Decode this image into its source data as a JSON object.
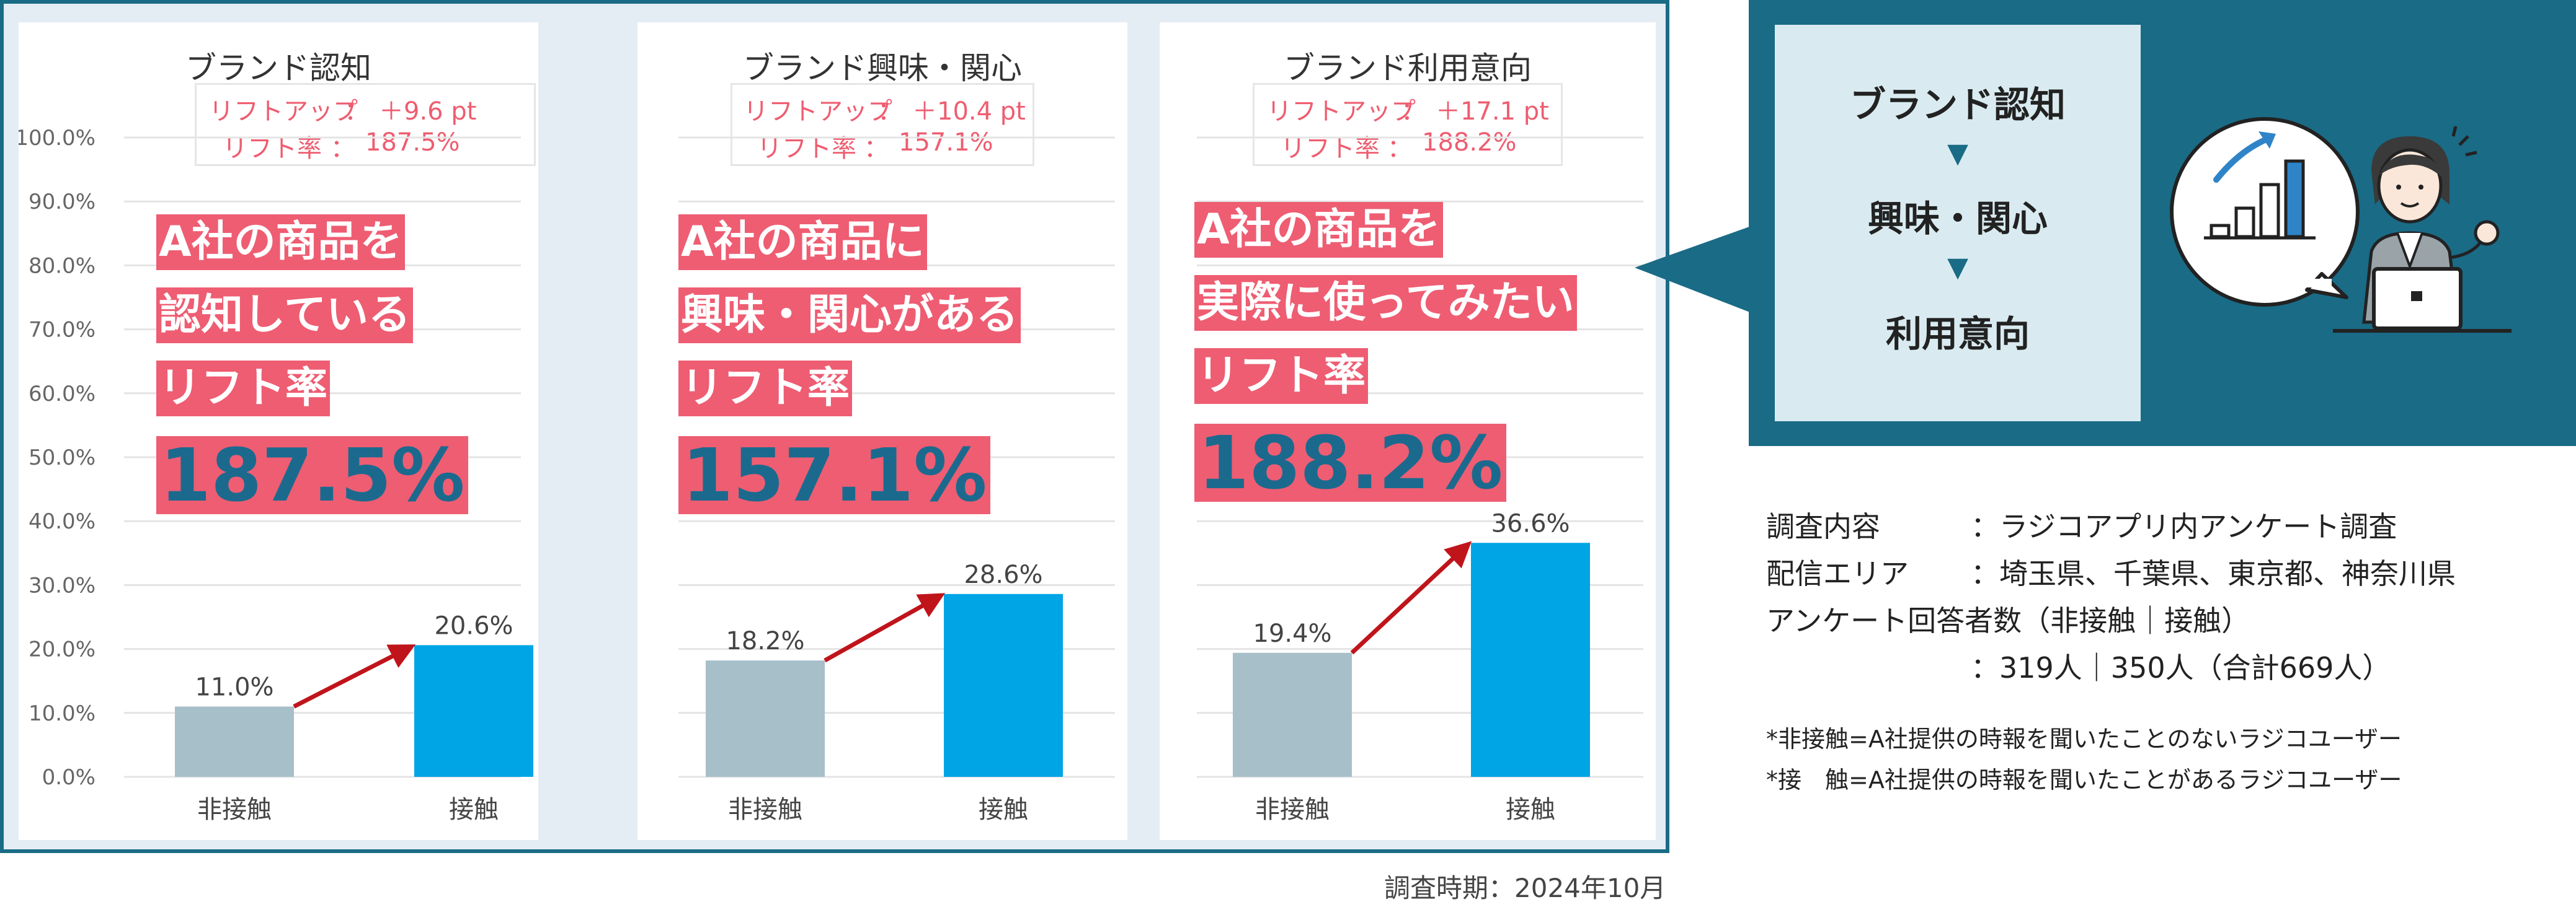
{
  "panels": [
    {
      "title": "ブランド認知",
      "lift_up_label": "リフトアップ",
      "lift_up_value": "＋9.6 pt",
      "lift_rate_label": "リフト率",
      "lift_rate_value": "187.5%",
      "headline": [
        "A社の商品を",
        "認知している",
        "リフト率"
      ],
      "big_pct": "187.5%"
    },
    {
      "title": "ブランド興味・関心",
      "lift_up_label": "リフトアップ",
      "lift_up_value": "＋10.4 pt",
      "lift_rate_label": "リフト率",
      "lift_rate_value": "157.1%",
      "headline": [
        "A社の商品に",
        "興味・関心がある",
        "リフト率"
      ],
      "big_pct": "157.1%"
    },
    {
      "title": "ブランド利用意向",
      "lift_up_label": "リフトアップ",
      "lift_up_value": "＋17.1 pt",
      "lift_rate_label": "リフト率",
      "lift_rate_value": "188.2%",
      "headline": [
        "A社の商品を",
        "実際に使ってみたい",
        "リフト率"
      ],
      "big_pct": "188.2%"
    }
  ],
  "colon": "：",
  "chart_data": [
    {
      "type": "bar",
      "title": "ブランド認知",
      "categories": [
        "非接触",
        "接触"
      ],
      "values": [
        11.0,
        20.6
      ],
      "value_labels": [
        "11.0%",
        "20.6%"
      ],
      "ylim": [
        0,
        100
      ],
      "yticks": [
        "0.0%",
        "10.0%",
        "20.0%",
        "30.0%",
        "40.0%",
        "50.0%",
        "60.0%",
        "70.0%",
        "80.0%",
        "90.0%",
        "100.0%"
      ],
      "grid": true,
      "bar_colors": [
        "#a7bfc9",
        "#00a5e6"
      ]
    },
    {
      "type": "bar",
      "title": "ブランド興味・関心",
      "categories": [
        "非接触",
        "接触"
      ],
      "values": [
        18.2,
        28.6
      ],
      "value_labels": [
        "18.2%",
        "28.6%"
      ],
      "ylim": [
        0,
        100
      ],
      "grid": true,
      "bar_colors": [
        "#a7bfc9",
        "#00a5e6"
      ]
    },
    {
      "type": "bar",
      "title": "ブランド利用意向",
      "categories": [
        "非接触",
        "接触"
      ],
      "values": [
        19.4,
        36.6
      ],
      "value_labels": [
        "19.4%",
        "36.6%"
      ],
      "ylim": [
        0,
        100
      ],
      "grid": true,
      "bar_colors": [
        "#a7bfc9",
        "#00a5e6"
      ]
    }
  ],
  "funnel": {
    "steps": [
      "ブランド認知",
      "興味・関心",
      "利用意向"
    ],
    "arrow": "▼"
  },
  "survey": {
    "rows": [
      {
        "key": "調査内容",
        "value": "：ラジコアプリ内アンケート調査"
      },
      {
        "key": "配信エリア",
        "value": "：埼玉県、千葉県、東京都、神奈川県"
      }
    ],
    "respondents_label": "アンケート回答者数（非接触｜接触）",
    "respondents_value": "：319人｜350人（合計669人）"
  },
  "notes": [
    "*非接触=A社提供の時報を聞いたことのないラジコユーザー",
    "*接　触=A社提供の時報を聞いたことがあるラジコユーザー"
  ],
  "period": "調査時期：2024年10月",
  "colors": {
    "frame": "#1a6b86",
    "accent_pink": "#ee5d72",
    "bar_non_contact": "#a7bfc9",
    "bar_contact": "#00a5e6",
    "arrow": "#c0141b"
  }
}
